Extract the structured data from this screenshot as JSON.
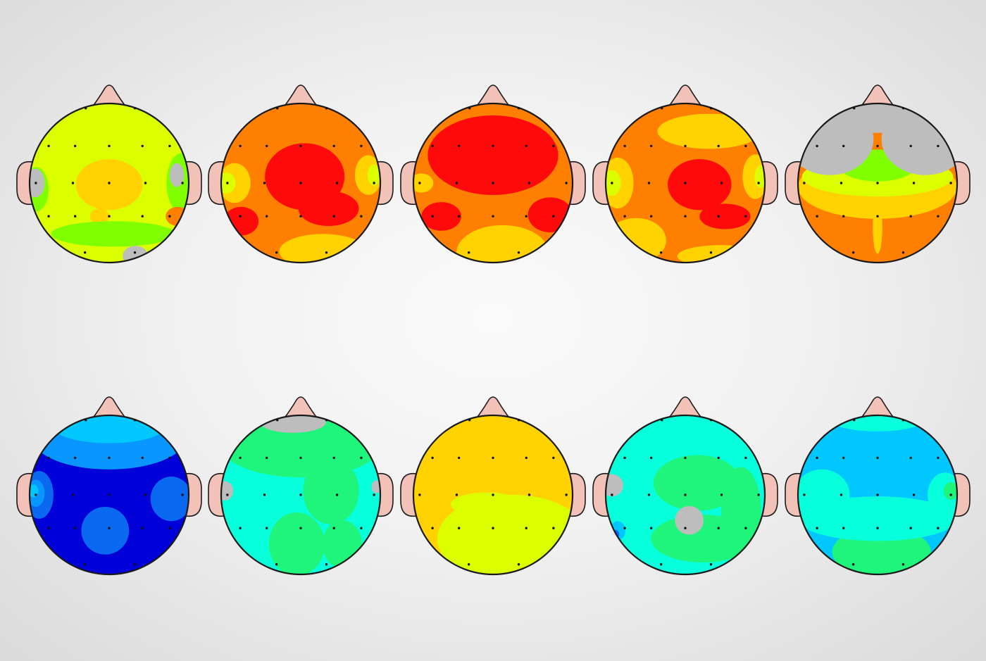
{
  "palette": {
    "outline": "#1a1a1a",
    "skin": "#f2c2b8",
    "gray": "#bdbdbd",
    "red": "#ff0a0a",
    "orange": "#ff7f00",
    "yellow": "#ffd200",
    "lime": "#dcff00",
    "green": "#80ff00",
    "spring": "#1ef57a",
    "cyan": "#07ffdc",
    "sky": "#00c8ff",
    "azure": "#0a96ff",
    "blue": "#0b68f0",
    "navy": "#0000d8"
  },
  "rows": [
    {
      "name": "upper-row",
      "heads": [
        {
          "base": "lime",
          "blobs": [
            [
              "yellow",
              0.0,
              0.02,
              0.42,
              0.32
            ],
            [
              "yellow",
              -0.12,
              0.42,
              0.12,
              0.1
            ],
            [
              "green",
              0.05,
              0.64,
              0.78,
              0.16
            ],
            [
              "green",
              0.92,
              0.0,
              0.2,
              0.38
            ],
            [
              "green",
              -0.92,
              0.08,
              0.16,
              0.28
            ],
            [
              "gray",
              -0.93,
              0.0,
              0.12,
              0.18
            ],
            [
              "gray",
              0.85,
              -0.1,
              0.09,
              0.15
            ],
            [
              "gray",
              0.33,
              0.92,
              0.16,
              0.13
            ],
            [
              "orange",
              0.86,
              0.42,
              0.15,
              0.12
            ]
          ]
        },
        {
          "base": "orange",
          "blobs": [
            [
              "red",
              0.05,
              -0.08,
              0.5,
              0.42
            ],
            [
              "red",
              0.35,
              0.32,
              0.38,
              0.22
            ],
            [
              "red",
              -0.75,
              0.48,
              0.22,
              0.18
            ],
            [
              "yellow",
              0.28,
              0.86,
              0.55,
              0.22
            ],
            [
              "yellow",
              -0.83,
              0.0,
              0.2,
              0.25
            ],
            [
              "lime",
              -0.93,
              0.0,
              0.11,
              0.13
            ],
            [
              "yellow",
              0.85,
              -0.1,
              0.17,
              0.25
            ],
            [
              "lime",
              0.92,
              -0.1,
              0.08,
              0.13
            ]
          ]
        },
        {
          "base": "orange",
          "blobs": [
            [
              "red",
              0.0,
              -0.35,
              0.82,
              0.5
            ],
            [
              "red",
              0.72,
              0.4,
              0.28,
              0.22
            ],
            [
              "red",
              -0.65,
              0.42,
              0.25,
              0.18
            ],
            [
              "yellow",
              0.12,
              0.88,
              0.58,
              0.35
            ],
            [
              "yellow",
              -0.9,
              0.0,
              0.15,
              0.12
            ]
          ]
        },
        {
          "base": "orange",
          "blobs": [
            [
              "yellow",
              -0.62,
              0.72,
              0.38,
              0.28
            ],
            [
              "yellow",
              0.45,
              0.92,
              0.55,
              0.14
            ],
            [
              "yellow",
              -0.85,
              0.0,
              0.2,
              0.32
            ],
            [
              "lime",
              -0.92,
              0.0,
              0.11,
              0.16
            ],
            [
              "yellow",
              0.3,
              -0.65,
              0.65,
              0.22
            ],
            [
              "yellow",
              0.88,
              -0.08,
              0.16,
              0.28
            ],
            [
              "lime",
              0.95,
              -0.08,
              0.08,
              0.14
            ],
            [
              "red",
              0.18,
              0.02,
              0.4,
              0.32
            ],
            [
              "red",
              0.5,
              0.42,
              0.32,
              0.16
            ]
          ]
        },
        {
          "base": "orange",
          "blobs": [
            [
              "yellow",
              0.0,
              0.05,
              1.0,
              0.4
            ],
            [
              "yellow",
              0.0,
              0.55,
              0.06,
              0.34
            ],
            [
              "lime",
              0.0,
              -0.08,
              0.95,
              0.25
            ],
            [
              "green",
              0.0,
              -0.22,
              0.48,
              0.2
            ],
            [
              "gray",
              -0.6,
              -0.55,
              0.55,
              0.45
            ],
            [
              "gray",
              0.6,
              -0.55,
              0.55,
              0.45
            ],
            [
              "gray",
              0.0,
              -0.88,
              0.75,
              0.25
            ]
          ]
        }
      ]
    },
    {
      "name": "lower-row",
      "heads": [
        {
          "base": "navy",
          "blobs": [
            [
              "azure",
              0.0,
              -0.7,
              0.95,
              0.38
            ],
            [
              "sky",
              0.0,
              -0.85,
              0.7,
              0.2
            ],
            [
              "blue",
              0.78,
              0.05,
              0.26,
              0.28
            ],
            [
              "blue",
              -0.05,
              0.45,
              0.3,
              0.3
            ],
            [
              "blue",
              -0.88,
              0.0,
              0.18,
              0.3
            ],
            [
              "azure",
              -0.92,
              -0.02,
              0.11,
              0.17
            ],
            [
              "sky",
              -0.95,
              -0.05,
              0.06,
              0.08
            ]
          ]
        },
        {
          "base": "cyan",
          "blobs": [
            [
              "spring",
              0.0,
              -0.62,
              1.0,
              0.4
            ],
            [
              "spring",
              0.38,
              -0.05,
              0.35,
              0.42
            ],
            [
              "spring",
              -0.05,
              0.62,
              0.35,
              0.4
            ],
            [
              "spring",
              0.52,
              0.62,
              0.25,
              0.3
            ],
            [
              "gray",
              -0.1,
              -0.92,
              0.42,
              0.14
            ],
            [
              "gray",
              -0.95,
              -0.05,
              0.1,
              0.12
            ],
            [
              "gray",
              0.95,
              -0.1,
              0.06,
              0.08
            ]
          ]
        },
        {
          "base": "yellow",
          "blobs": [
            [
              "lime",
              0.25,
              0.55,
              0.95,
              0.55
            ],
            [
              "lime",
              -0.08,
              0.12,
              0.45,
              0.15
            ]
          ]
        },
        {
          "base": "cyan",
          "blobs": [
            [
              "spring",
              0.15,
              -0.15,
              0.55,
              0.35
            ],
            [
              "spring",
              0.22,
              0.55,
              0.65,
              0.3
            ],
            [
              "spring",
              0.7,
              0.2,
              0.25,
              0.55
            ],
            [
              "gray",
              0.05,
              0.32,
              0.18,
              0.18
            ],
            [
              "gray",
              -0.92,
              -0.12,
              0.14,
              0.14
            ],
            [
              "sky",
              -0.85,
              0.45,
              0.1,
              0.12
            ],
            [
              "blue",
              -0.88,
              0.5,
              0.05,
              0.06
            ]
          ]
        },
        {
          "base": "sky",
          "blobs": [
            [
              "spring",
              0.05,
              0.72,
              0.62,
              0.32
            ],
            [
              "cyan",
              0.0,
              0.3,
              1.0,
              0.28
            ],
            [
              "cyan",
              -0.7,
              0.0,
              0.35,
              0.32
            ],
            [
              "cyan",
              0.85,
              0.0,
              0.22,
              0.28
            ],
            [
              "cyan",
              0.0,
              -0.92,
              0.55,
              0.12
            ],
            [
              "spring",
              0.92,
              -0.05,
              0.09,
              0.11
            ]
          ]
        }
      ]
    }
  ]
}
